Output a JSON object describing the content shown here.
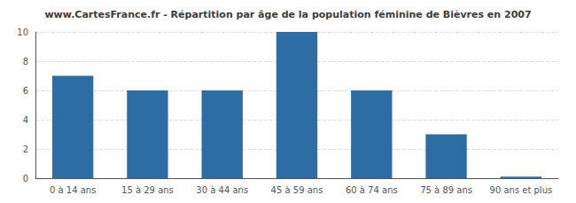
{
  "chart_data": {
    "type": "bar",
    "title": "www.CartesFrance.fr - Répartition par âge de la population féminine de Bièvres en 2007",
    "categories": [
      "0 à 14 ans",
      "15 à 29 ans",
      "30 à 44 ans",
      "45 à 59 ans",
      "60 à 74 ans",
      "75 à 89 ans",
      "90 ans et plus"
    ],
    "values": [
      7,
      6,
      6,
      10,
      6,
      3,
      0.1
    ],
    "color": "#2e6da4",
    "ylim": [
      0,
      10
    ],
    "yticks": [
      0,
      2,
      4,
      6,
      8,
      10
    ],
    "grid": true
  }
}
